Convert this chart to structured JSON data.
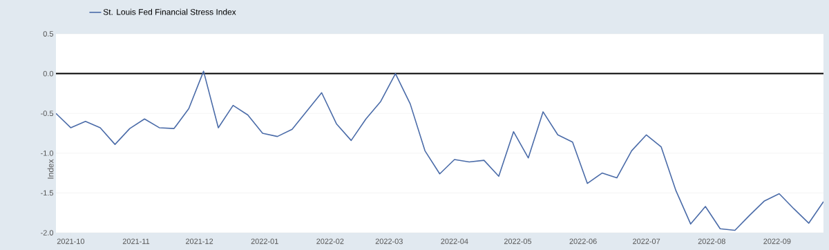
{
  "chart_data": {
    "type": "line",
    "ylabel": "Index",
    "legend": "top left",
    "grid": "y",
    "marker": "none",
    "line_style": "solid",
    "xlim": [
      "2021-09-24",
      "2022-09-23"
    ],
    "xticks": [
      {
        "value": "2021-10-01",
        "label": "2021-10"
      },
      {
        "value": "2021-11-01",
        "label": "2021-11"
      },
      {
        "value": "2021-12-01",
        "label": "2021-12"
      },
      {
        "value": "2022-01-01",
        "label": "2022-01"
      },
      {
        "value": "2022-02-01",
        "label": "2022-02"
      },
      {
        "value": "2022-03-01",
        "label": "2022-03"
      },
      {
        "value": "2022-04-01",
        "label": "2022-04"
      },
      {
        "value": "2022-05-01",
        "label": "2022-05"
      },
      {
        "value": "2022-06-01",
        "label": "2022-06"
      },
      {
        "value": "2022-07-01",
        "label": "2022-07"
      },
      {
        "value": "2022-08-01",
        "label": "2022-08"
      },
      {
        "value": "2022-09-01",
        "label": "2022-09"
      }
    ],
    "ylim": [
      -2.0,
      0.5
    ],
    "yticks": [
      {
        "value": 0.5,
        "label": "0.5"
      },
      {
        "value": 0,
        "label": "0.0"
      },
      {
        "value": -0.5,
        "label": "-0.5"
      },
      {
        "value": -1,
        "label": "-1.0"
      },
      {
        "value": -1.5,
        "label": "-1.5"
      },
      {
        "value": -2,
        "label": "-2.0"
      }
    ],
    "ref_lines": [
      {
        "axis": "y",
        "value": 0,
        "color": "#000000"
      }
    ],
    "x": [
      "2021-09-24",
      "2021-10-01",
      "2021-10-08",
      "2021-10-15",
      "2021-10-22",
      "2021-10-29",
      "2021-11-05",
      "2021-11-12",
      "2021-11-19",
      "2021-11-26",
      "2021-12-03",
      "2021-12-10",
      "2021-12-17",
      "2021-12-24",
      "2021-12-31",
      "2022-01-07",
      "2022-01-14",
      "2022-01-21",
      "2022-01-28",
      "2022-02-04",
      "2022-02-11",
      "2022-02-18",
      "2022-02-25",
      "2022-03-04",
      "2022-03-11",
      "2022-03-18",
      "2022-03-25",
      "2022-04-01",
      "2022-04-08",
      "2022-04-15",
      "2022-04-22",
      "2022-04-29",
      "2022-05-06",
      "2022-05-13",
      "2022-05-20",
      "2022-05-27",
      "2022-06-03",
      "2022-06-10",
      "2022-06-17",
      "2022-06-24",
      "2022-07-01",
      "2022-07-08",
      "2022-07-15",
      "2022-07-22",
      "2022-07-29",
      "2022-08-05",
      "2022-08-12",
      "2022-08-19",
      "2022-08-26",
      "2022-09-02",
      "2022-09-09",
      "2022-09-16",
      "2022-09-23"
    ],
    "series": [
      {
        "name": "St. Louis Fed Financial Stress Index",
        "color": "#4a6ba8",
        "values": [
          -0.5,
          -0.68,
          -0.6,
          -0.68,
          -0.89,
          -0.69,
          -0.57,
          -0.68,
          -0.69,
          -0.44,
          0.03,
          -0.68,
          -0.4,
          -0.52,
          -0.75,
          -0.79,
          -0.7,
          -0.47,
          -0.24,
          -0.63,
          -0.84,
          -0.57,
          -0.35,
          0.0,
          -0.38,
          -0.97,
          -1.26,
          -1.08,
          -1.11,
          -1.09,
          -1.29,
          -0.73,
          -1.06,
          -0.48,
          -0.77,
          -0.86,
          -1.38,
          -1.25,
          -1.31,
          -0.97,
          -0.77,
          -0.92,
          -1.47,
          -1.89,
          -1.67,
          -1.95,
          -1.97,
          -1.78,
          -1.6,
          -1.51,
          -1.7,
          -1.88,
          -1.61
        ]
      }
    ]
  }
}
